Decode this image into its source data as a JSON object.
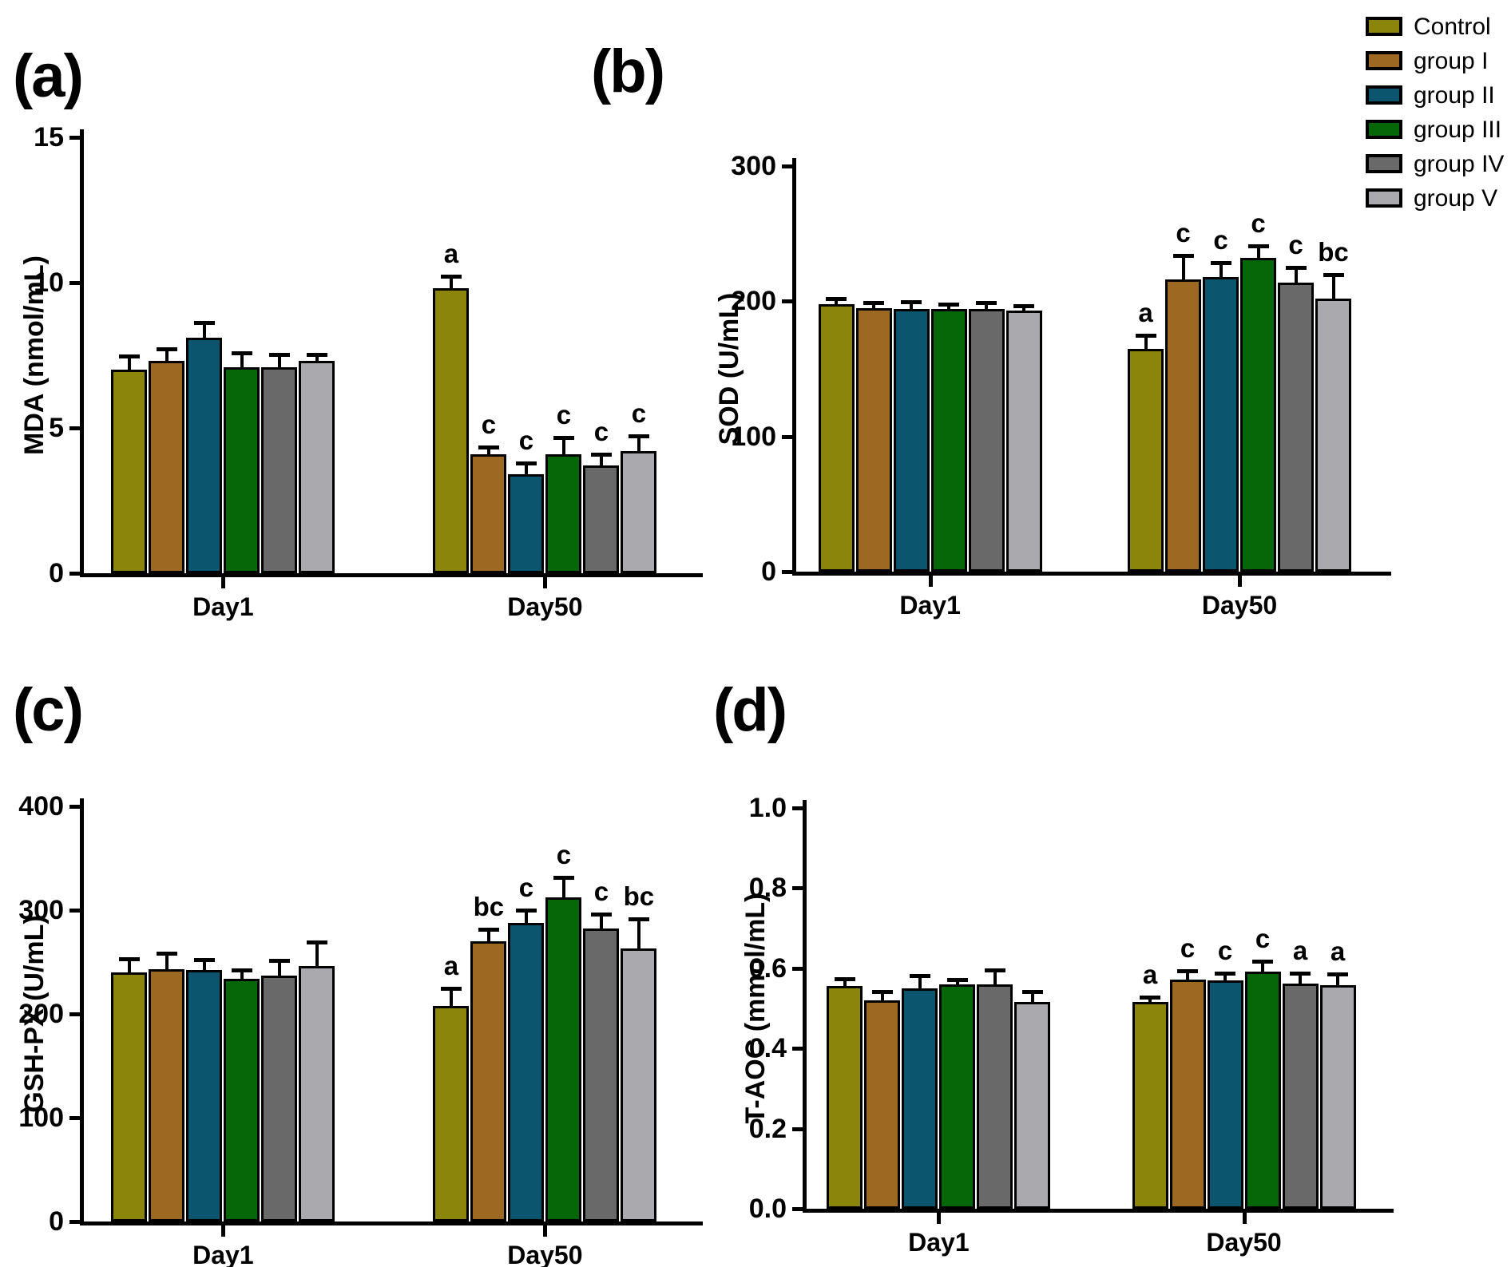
{
  "figure": {
    "background": "#ffffff",
    "x_group_labels": [
      "Day1",
      "Day50"
    ]
  },
  "legend": {
    "entries": [
      {
        "label": "Control",
        "color": "#8B860B"
      },
      {
        "label": "group I",
        "color": "#9D6922"
      },
      {
        "label": "group II",
        "color": "#0B556E"
      },
      {
        "label": "group III",
        "color": "#056708"
      },
      {
        "label": "group IV",
        "color": "#696969"
      },
      {
        "label": "group V",
        "color": "#AAAAAE"
      }
    ]
  },
  "chart_data": [
    {
      "id": "a",
      "type": "bar",
      "panel_label": "(a)",
      "ylabel": "MDA (nmol/mL)",
      "ylim": [
        0,
        15
      ],
      "yticks": [
        "0",
        "5",
        "10",
        "15"
      ],
      "grid": false,
      "categories": [
        "Day1",
        "Day50"
      ],
      "series": [
        {
          "name": "Control",
          "color": "#8B860B",
          "values": [
            7.0,
            9.8
          ],
          "errors": [
            0.4,
            0.35
          ],
          "letters": [
            "",
            "a"
          ]
        },
        {
          "name": "group I",
          "color": "#9D6922",
          "values": [
            7.3,
            4.1
          ],
          "errors": [
            0.35,
            0.15
          ],
          "letters": [
            "",
            "c"
          ]
        },
        {
          "name": "group II",
          "color": "#0B556E",
          "values": [
            8.1,
            3.4
          ],
          "errors": [
            0.45,
            0.3
          ],
          "letters": [
            "",
            "c"
          ]
        },
        {
          "name": "group III",
          "color": "#056708",
          "values": [
            7.1,
            4.1
          ],
          "errors": [
            0.4,
            0.5
          ],
          "letters": [
            "",
            "c"
          ]
        },
        {
          "name": "group IV",
          "color": "#696969",
          "values": [
            7.1,
            3.7
          ],
          "errors": [
            0.35,
            0.3
          ],
          "letters": [
            "",
            "c"
          ]
        },
        {
          "name": "group V",
          "color": "#AAAAAE",
          "values": [
            7.3,
            4.2
          ],
          "errors": [
            0.15,
            0.45
          ],
          "letters": [
            "",
            "c"
          ]
        }
      ]
    },
    {
      "id": "b",
      "type": "bar",
      "panel_label": "(b)",
      "ylabel": "SOD (U/mL)",
      "ylim": [
        0,
        300
      ],
      "yticks": [
        "0",
        "100",
        "200",
        "300"
      ],
      "grid": false,
      "categories": [
        "Day1",
        "Day50"
      ],
      "series": [
        {
          "name": "Control",
          "color": "#8B860B",
          "values": [
            198,
            165
          ],
          "errors": [
            2,
            8
          ],
          "letters": [
            "",
            "a"
          ]
        },
        {
          "name": "group I",
          "color": "#9D6922",
          "values": [
            195,
            216
          ],
          "errors": [
            2,
            16
          ],
          "letters": [
            "",
            "c"
          ]
        },
        {
          "name": "group II",
          "color": "#0B556E",
          "values": [
            194,
            218
          ],
          "errors": [
            4,
            9
          ],
          "letters": [
            "",
            "c"
          ]
        },
        {
          "name": "group III",
          "color": "#056708",
          "values": [
            194,
            232
          ],
          "errors": [
            2,
            7
          ],
          "letters": [
            "",
            "c"
          ]
        },
        {
          "name": "group IV",
          "color": "#696969",
          "values": [
            194,
            214
          ],
          "errors": [
            3,
            9
          ],
          "letters": [
            "",
            "c"
          ]
        },
        {
          "name": "group V",
          "color": "#AAAAAE",
          "values": [
            193,
            202
          ],
          "errors": [
            2,
            16
          ],
          "letters": [
            "",
            "bc"
          ]
        }
      ]
    },
    {
      "id": "c",
      "type": "bar",
      "panel_label": "(c)",
      "ylabel": "GSH-PX (U/mL)",
      "ylim": [
        0,
        400
      ],
      "yticks": [
        "0",
        "100",
        "200",
        "300",
        "400"
      ],
      "grid": false,
      "categories": [
        "Day1",
        "Day50"
      ],
      "series": [
        {
          "name": "Control",
          "color": "#8B860B",
          "values": [
            240,
            208
          ],
          "errors": [
            11,
            14
          ],
          "letters": [
            "",
            "a"
          ]
        },
        {
          "name": "group I",
          "color": "#9D6922",
          "values": [
            243,
            270
          ],
          "errors": [
            13,
            9
          ],
          "letters": [
            "",
            "bc"
          ]
        },
        {
          "name": "group II",
          "color": "#0B556E",
          "values": [
            242,
            288
          ],
          "errors": [
            8,
            10
          ],
          "letters": [
            "",
            "c"
          ]
        },
        {
          "name": "group III",
          "color": "#056708",
          "values": [
            234,
            312
          ],
          "errors": [
            6,
            17
          ],
          "letters": [
            "",
            "c"
          ]
        },
        {
          "name": "group IV",
          "color": "#696969",
          "values": [
            237,
            282
          ],
          "errors": [
            12,
            12
          ],
          "letters": [
            "",
            "c"
          ]
        },
        {
          "name": "group V",
          "color": "#AAAAAE",
          "values": [
            246,
            263
          ],
          "errors": [
            21,
            26
          ],
          "letters": [
            "",
            "bc"
          ]
        }
      ]
    },
    {
      "id": "d",
      "type": "bar",
      "panel_label": "(d)",
      "ylabel": "T-AOC (mmol/mL)",
      "ylim": [
        0,
        1.0
      ],
      "yticks": [
        "0.0",
        "0.2",
        "0.4",
        "0.6",
        "0.8",
        "1.0"
      ],
      "grid": false,
      "categories": [
        "Day1",
        "Day50"
      ],
      "series": [
        {
          "name": "Control",
          "color": "#8B860B",
          "values": [
            0.555,
            0.515
          ],
          "errors": [
            0.012,
            0.006
          ],
          "letters": [
            "",
            "a"
          ]
        },
        {
          "name": "group I",
          "color": "#9D6922",
          "values": [
            0.52,
            0.572
          ],
          "errors": [
            0.015,
            0.015
          ],
          "letters": [
            "",
            "c"
          ]
        },
        {
          "name": "group II",
          "color": "#0B556E",
          "values": [
            0.55,
            0.57
          ],
          "errors": [
            0.025,
            0.012
          ],
          "letters": [
            "",
            "c"
          ]
        },
        {
          "name": "group III",
          "color": "#056708",
          "values": [
            0.56,
            0.592
          ],
          "errors": [
            0.006,
            0.02
          ],
          "letters": [
            "",
            "c"
          ]
        },
        {
          "name": "group IV",
          "color": "#696969",
          "values": [
            0.56,
            0.562
          ],
          "errors": [
            0.03,
            0.02
          ],
          "letters": [
            "",
            "a"
          ]
        },
        {
          "name": "group V",
          "color": "#AAAAAE",
          "values": [
            0.515,
            0.558
          ],
          "errors": [
            0.02,
            0.022
          ],
          "letters": [
            "",
            "a"
          ]
        }
      ]
    }
  ]
}
